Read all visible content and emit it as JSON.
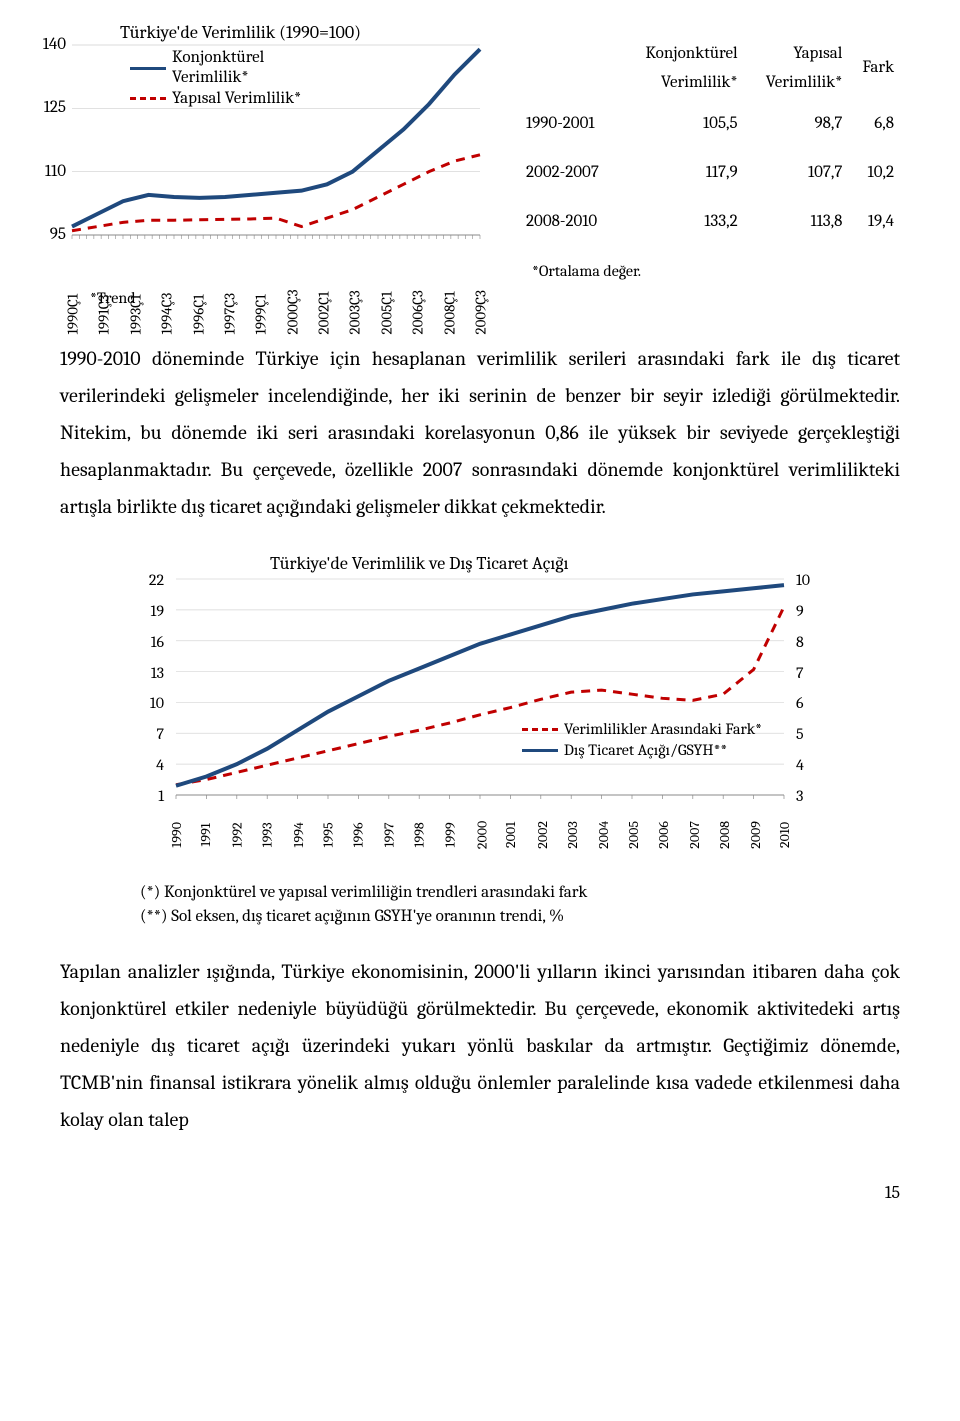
{
  "chart1": {
    "title": "Türkiye'de Verimlilik (1990=100)",
    "legend": [
      {
        "label": "Konjonktürel Verimlilik*",
        "color": "#1f497d",
        "style": "solid"
      },
      {
        "label": "Yapısal Verimlilik*",
        "color": "#c00000",
        "style": "dashed"
      }
    ],
    "y_ticks": [
      95,
      110,
      125,
      140
    ],
    "y_min": 95,
    "y_max": 140,
    "x_labels": [
      "1990Ç1",
      "1991Ç3",
      "1993Ç1",
      "1994Ç3",
      "1996Ç1",
      "1997Ç3",
      "1999Ç1",
      "2000Ç3",
      "2002Ç1",
      "2003Ç3",
      "2005Ç1",
      "2006Ç3",
      "2008Ç1",
      "2009Ç3"
    ],
    "series1_color": "#1f497d",
    "series1": [
      97,
      100,
      103,
      104.5,
      104,
      103.8,
      104,
      104.5,
      105,
      105.5,
      107,
      110,
      115,
      120,
      126,
      133,
      139
    ],
    "series2_color": "#c00000",
    "series2": [
      96,
      97,
      98,
      98.5,
      98.5,
      98.6,
      98.7,
      98.8,
      99,
      97,
      99,
      101,
      104,
      107,
      110,
      112.5,
      114
    ],
    "trend_note": "*Trend"
  },
  "table": {
    "headers": [
      "",
      "Konjonktürel Verimlilik*",
      "Yapısal Verimlilik*",
      "Fark"
    ],
    "rows": [
      [
        "1990-2001",
        "105,5",
        "98,7",
        "6,8"
      ],
      [
        "2002-2007",
        "117,9",
        "107,7",
        "10,2"
      ],
      [
        "2008-2010",
        "133,2",
        "113,8",
        "19,4"
      ]
    ],
    "note": "*Ortalama değer."
  },
  "para1": "1990-2010 döneminde Türkiye için hesaplanan verimlilik serileri arasındaki fark ile dış ticaret verilerindeki gelişmeler incelendiğinde, her iki serinin de benzer bir seyir izlediği görülmektedir. Nitekim, bu dönemde iki seri arasındaki korelasyonun 0,86 ile yüksek bir seviyede gerçekleştiği hesaplanmaktadır. Bu çerçevede, özellikle 2007 sonrasındaki dönemde konjonktürel verimlilikteki artışla birlikte dış ticaret açığındaki gelişmeler dikkat çekmektedir.",
  "chart2": {
    "title": "Türkiye'de Verimlilik ve Dış Ticaret Açığı",
    "y_left_ticks": [
      1,
      4,
      7,
      10,
      13,
      16,
      19,
      22
    ],
    "y_left_min": 1,
    "y_left_max": 22,
    "y_right_ticks": [
      3,
      4,
      5,
      6,
      7,
      8,
      9,
      10
    ],
    "y_right_min": 3,
    "y_right_max": 10,
    "x_labels": [
      "1990",
      "1991",
      "1992",
      "1993",
      "1994",
      "1995",
      "1996",
      "1997",
      "1998",
      "1999",
      "2000",
      "2001",
      "2002",
      "2003",
      "2004",
      "2005",
      "2006",
      "2007",
      "2008",
      "2009",
      "2010"
    ],
    "series_blue_color": "#1f497d",
    "series_blue": [
      3.3,
      3.6,
      4.0,
      4.5,
      5.1,
      5.7,
      6.2,
      6.7,
      7.1,
      7.5,
      7.9,
      8.2,
      8.5,
      8.8,
      9.0,
      9.2,
      9.35,
      9.5,
      9.6,
      9.7,
      9.8
    ],
    "series_red_color": "#c00000",
    "series_red": [
      2.0,
      2.5,
      3.2,
      3.9,
      4.6,
      5.3,
      6.0,
      6.7,
      7.3,
      8.0,
      8.8,
      9.5,
      10.3,
      11.0,
      11.2,
      10.8,
      10.4,
      10.2,
      10.8,
      13.2,
      19.3
    ],
    "legend": [
      {
        "label": "Verimlilikler Arasındaki Fark*",
        "color": "#c00000",
        "style": "dashed"
      },
      {
        "label": "Dış Ticaret Açığı/GSYH**",
        "color": "#1f497d",
        "style": "solid"
      }
    ],
    "notes": [
      "(*) Konjonktürel ve yapısal verimliliğin trendleri arasındaki fark",
      "(**) Sol eksen, dış ticaret açığının GSYH'ye oranının trendi, %"
    ]
  },
  "para2": "Yapılan analizler ışığında, Türkiye ekonomisinin, 2000'li yılların ikinci yarısından itibaren daha çok konjonktürel etkiler nedeniyle büyüdüğü görülmektedir. Bu çerçevede, ekonomik aktivitedeki artış nedeniyle dış ticaret açığı üzerindeki yukarı yönlü baskılar da artmıştır. Geçtiğimiz dönemde, TCMB'nin finansal istikrara yönelik almış olduğu önlemler paralelinde kısa vadede etkilenmesi daha kolay olan talep",
  "page_number": "15"
}
